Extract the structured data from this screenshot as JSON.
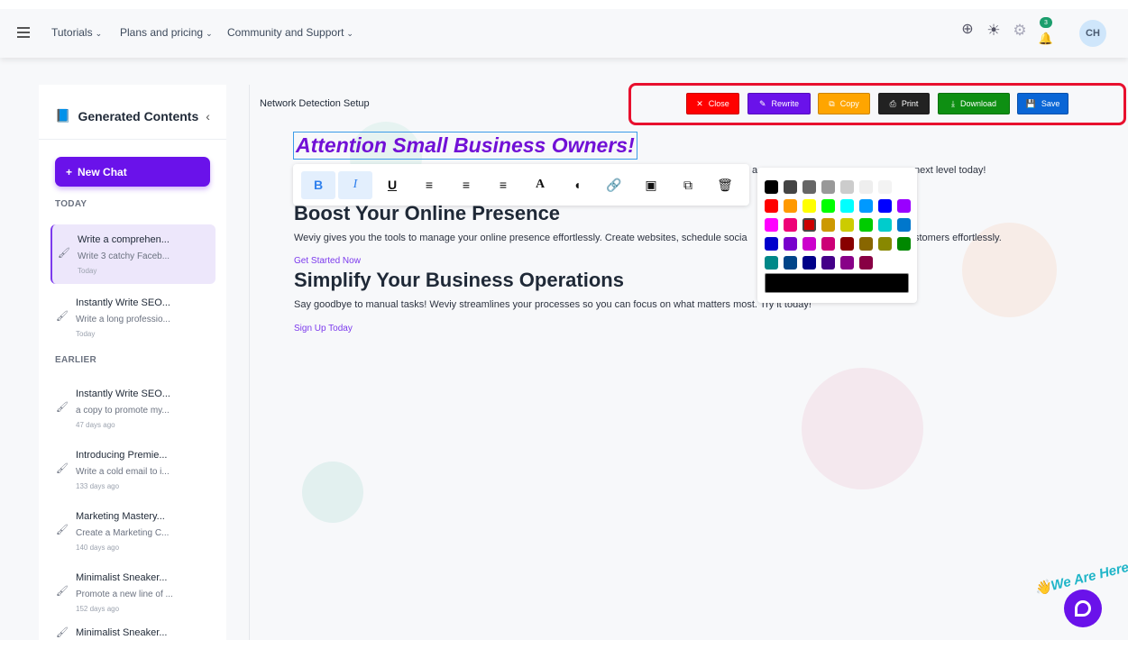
{
  "topbar": {
    "nav": [
      {
        "label": "Tutorials"
      },
      {
        "label": "Plans and pricing"
      },
      {
        "label": "Community and Support"
      }
    ],
    "notification_count": "3",
    "avatar_initials": "CH"
  },
  "sidebar": {
    "title": "Generated Contents",
    "new_chat": "New Chat",
    "sections": {
      "today": "TODAY",
      "earlier": "EARLIER"
    },
    "items": [
      {
        "title": "Write a comprehen...",
        "snippet": "Write 3 catchy Faceb...",
        "date": "Today",
        "active": true
      },
      {
        "title": "Instantly Write SEO...",
        "snippet": "Write a long professio...",
        "date": "Today"
      },
      {
        "title": "Instantly Write SEO...",
        "snippet": "a copy to promote my...",
        "date": "47 days ago"
      },
      {
        "title": "Introducing Premie...",
        "snippet": "Write a cold email to i...",
        "date": "133 days ago"
      },
      {
        "title": "Marketing Mastery...",
        "snippet": "Create a Marketing C...",
        "date": "140 days ago"
      },
      {
        "title": "Minimalist Sneaker...",
        "snippet": "Promote a new line of ...",
        "date": "152 days ago"
      },
      {
        "title": "Minimalist Sneaker...",
        "snippet": "",
        "date": ""
      }
    ]
  },
  "document": {
    "title": "Network Detection Setup",
    "actions": [
      {
        "label": "Close",
        "color": "#ff0000",
        "icon": "close-icon"
      },
      {
        "label": "Rewrite",
        "color": "#6a12ea",
        "icon": "edit-icon"
      },
      {
        "label": "Copy",
        "color": "#ffa500",
        "icon": "copy-icon"
      },
      {
        "label": "Print",
        "color": "#222222",
        "icon": "print-icon"
      },
      {
        "label": "Download",
        "color": "#0e8f12",
        "icon": "download-icon"
      },
      {
        "label": "Save",
        "color": "#0a66d6",
        "icon": "save-icon"
      }
    ],
    "heading1": "Attention Small Business Owners!",
    "para1_visible_start": "a",
    "para1_visible_end": "next level today!",
    "heading2": "Boost Your Online Presence",
    "para2_start": "Weviy gives you the tools to manage your online presence effortlessly. Create websites, schedule socia",
    "para2_end": "stomers effortlessly.",
    "link1": "Get Started Now",
    "heading3": "Simplify Your Business Operations",
    "para3": "Say goodbye to manual tasks! Weviy streamlines your processes so you can focus on what matters most. Try it today!",
    "link2": "Sign Up Today"
  },
  "toolbar": {
    "icons": [
      "bold-icon",
      "italic-icon",
      "underline-icon",
      "align-left-icon",
      "align-center-icon",
      "align-right-icon",
      "font-color-icon",
      "fill-color-icon",
      "link-icon",
      "image-icon",
      "duplicate-icon",
      "delete-icon"
    ],
    "active": [
      "bold-icon",
      "italic-icon"
    ]
  },
  "palette": {
    "selected": "#cc0000",
    "current": "#000000",
    "rows": [
      [
        "#000000",
        "#444444",
        "#666666",
        "#999999",
        "#cccccc",
        "#eeeeee",
        "#f3f3f3",
        "#ffffff"
      ],
      [
        "#ff0000",
        "#ff9900",
        "#ffff00",
        "#00ff00",
        "#00ffff",
        "#0099ff",
        "#0000ff",
        "#9900ff"
      ],
      [
        "#ff00ff",
        "#ee0077",
        "#cc0000",
        "#cc9900",
        "#cccc00",
        "#00cc00",
        "#00cccc",
        "#0077cc"
      ],
      [
        "#0000cc",
        "#7700cc",
        "#cc00cc",
        "#cc0077",
        "#880000",
        "#886600",
        "#888800",
        "#008800"
      ],
      [
        "#008888",
        "#004488",
        "#000088",
        "#440088",
        "#880088",
        "#880044"
      ]
    ]
  },
  "widget": {
    "text": "We Are Here!"
  }
}
